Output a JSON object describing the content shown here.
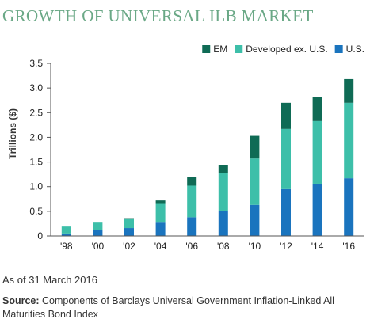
{
  "title": "GROWTH OF UNIVERSAL ILB MARKET",
  "note": "As of 31 March 2016",
  "source_label": "Source:",
  "source_text": "Components of Barclays Universal Government Inflation-Linked All Maturities Bond Index",
  "colors": {
    "em": "#0f6b55",
    "developed": "#3dbfa9",
    "us": "#1a74be",
    "title": "#6aa886",
    "axis": "#555555"
  },
  "chart_data": {
    "type": "bar",
    "stacked": true,
    "ylabel": "Trillions ($)",
    "xlabel": "",
    "ylim": [
      0,
      3.5
    ],
    "yticks": [
      "0",
      "0.5",
      "1.0",
      "1.5",
      "2.0",
      "2.5",
      "3.0",
      "3.5"
    ],
    "categories": [
      "'98",
      "'00",
      "'02",
      "'04",
      "'06",
      "'08",
      "'10",
      "'12",
      "'14",
      "'16"
    ],
    "legend_position": "top-right",
    "grid": false,
    "series": [
      {
        "name": "U.S.",
        "color": "#1a74be",
        "values": [
          0.05,
          0.12,
          0.16,
          0.27,
          0.38,
          0.51,
          0.63,
          0.95,
          1.06,
          1.17
        ]
      },
      {
        "name": "Developed ex. U.S.",
        "color": "#3dbfa9",
        "values": [
          0.14,
          0.15,
          0.18,
          0.38,
          0.64,
          0.76,
          0.94,
          1.22,
          1.27,
          1.53
        ]
      },
      {
        "name": "EM",
        "color": "#0f6b55",
        "values": [
          0.0,
          0.0,
          0.02,
          0.07,
          0.18,
          0.16,
          0.46,
          0.53,
          0.48,
          0.48
        ]
      }
    ],
    "legend_order": [
      "EM",
      "Developed ex. U.S.",
      "U.S."
    ]
  }
}
